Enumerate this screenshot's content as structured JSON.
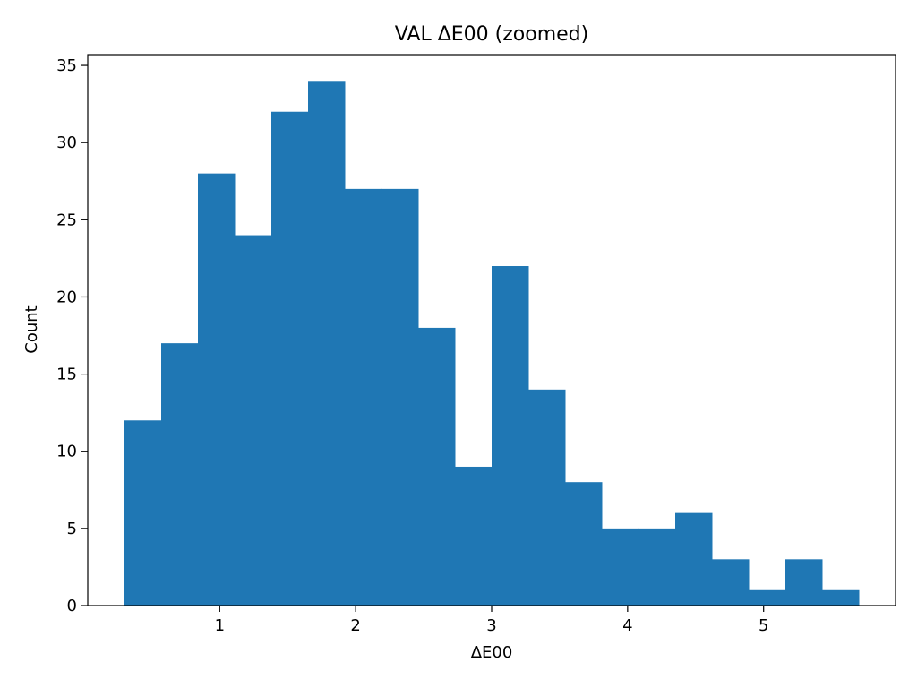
{
  "chart_data": {
    "type": "bar",
    "title": "VAL ΔE00 (zoomed)",
    "xlabel": "ΔE00",
    "ylabel": "Count",
    "bin_edges": [
      0.3,
      0.57,
      0.84,
      1.11,
      1.38,
      1.65,
      1.92,
      2.19,
      2.46,
      2.73,
      3.0,
      3.27,
      3.54,
      3.81,
      4.08,
      4.35,
      4.62,
      4.89,
      5.16,
      5.43,
      5.7
    ],
    "values": [
      12,
      17,
      28,
      24,
      32,
      34,
      27,
      27,
      18,
      9,
      22,
      14,
      8,
      5,
      5,
      6,
      3,
      1,
      3,
      1
    ],
    "xlim": [
      0.03,
      5.97
    ],
    "ylim": [
      0,
      35.7
    ],
    "xticks": [
      1,
      2,
      3,
      4,
      5
    ],
    "xtick_labels": [
      "1",
      "2",
      "3",
      "4",
      "5"
    ],
    "yticks": [
      0,
      5,
      10,
      15,
      20,
      25,
      30,
      35
    ],
    "ytick_labels": [
      "0",
      "5",
      "10",
      "15",
      "20",
      "25",
      "30",
      "35"
    ],
    "bar_color": "#1f77b4",
    "grid": false,
    "legend": "none"
  }
}
